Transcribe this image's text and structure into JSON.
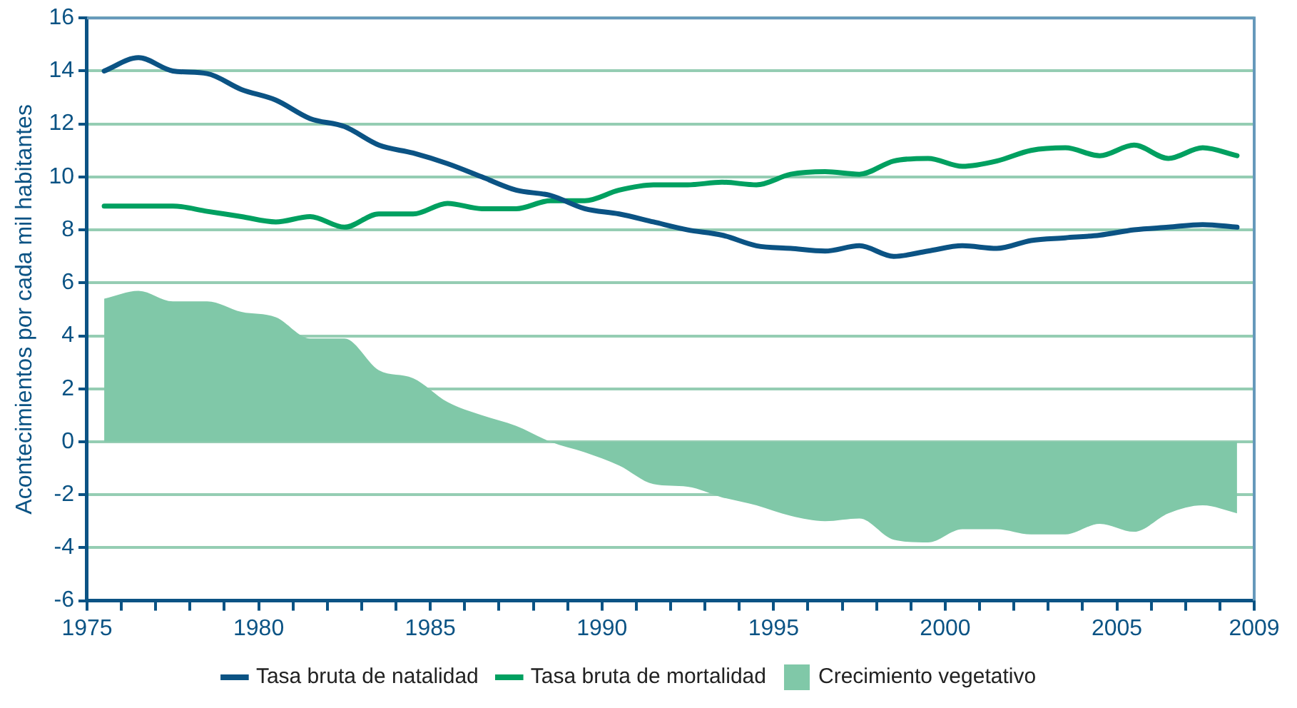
{
  "chart_data": {
    "type": "line",
    "ylabel": "Acontecimientos por cada mil habitantes",
    "x": [
      1975.5,
      1976.5,
      1977.5,
      1978.5,
      1979.5,
      1980.5,
      1981.5,
      1982.5,
      1983.5,
      1984.5,
      1985.5,
      1986.5,
      1987.5,
      1988.5,
      1989.5,
      1990.5,
      1991.5,
      1992.5,
      1993.5,
      1994.5,
      1995.5,
      1996.5,
      1997.5,
      1998.5,
      1999.5,
      2000.5,
      2001.5,
      2002.5,
      2003.5,
      2004.5,
      2005.5,
      2006.5,
      2007.5,
      2008.5
    ],
    "series": [
      {
        "name": "Tasa bruta de natalidad",
        "color": "#0b5384",
        "values": [
          14.0,
          14.5,
          14.0,
          13.9,
          13.3,
          12.9,
          12.2,
          11.9,
          11.2,
          10.9,
          10.5,
          10.0,
          9.5,
          9.3,
          8.8,
          8.6,
          8.3,
          8.0,
          7.8,
          7.4,
          7.3,
          7.2,
          7.4,
          7.0,
          7.2,
          7.4,
          7.3,
          7.6,
          7.7,
          7.8,
          8.0,
          8.1,
          8.2,
          8.1
        ]
      },
      {
        "name": "Tasa bruta de mortalidad",
        "color": "#00a060",
        "values": [
          8.9,
          8.9,
          8.9,
          8.7,
          8.5,
          8.3,
          8.5,
          8.1,
          8.6,
          8.6,
          9.0,
          8.8,
          8.8,
          9.1,
          9.1,
          9.5,
          9.7,
          9.7,
          9.8,
          9.7,
          10.1,
          10.2,
          10.1,
          10.6,
          10.7,
          10.4,
          10.6,
          11.0,
          11.1,
          10.8,
          11.2,
          10.7,
          11.1,
          10.8
        ]
      },
      {
        "name": "Crecimiento vegetativo",
        "type": "area",
        "color": "#80c8a8",
        "values": [
          5.4,
          5.7,
          5.3,
          5.3,
          4.9,
          4.7,
          3.9,
          3.9,
          2.7,
          2.4,
          1.5,
          1.0,
          0.6,
          0.0,
          -0.4,
          -0.9,
          -1.6,
          -1.7,
          -2.1,
          -2.4,
          -2.8,
          -3.0,
          -2.9,
          -3.7,
          -3.8,
          -3.3,
          -3.3,
          -3.5,
          -3.5,
          -3.1,
          -3.4,
          -2.7,
          -2.4,
          -2.7
        ]
      }
    ],
    "xlim": [
      1975,
      2009
    ],
    "xticks": [
      1975,
      {
        "value": 1976,
        "label": null
      },
      {
        "value": 1977,
        "label": null
      },
      {
        "value": 1978,
        "label": null
      },
      {
        "value": 1979,
        "label": null
      },
      1980,
      {
        "value": 1981,
        "label": null
      },
      {
        "value": 1982,
        "label": null
      },
      {
        "value": 1983,
        "label": null
      },
      {
        "value": 1984,
        "label": null
      },
      1985,
      {
        "value": 1986,
        "label": null
      },
      {
        "value": 1987,
        "label": null
      },
      {
        "value": 1988,
        "label": null
      },
      {
        "value": 1989,
        "label": null
      },
      1990,
      {
        "value": 1991,
        "label": null
      },
      {
        "value": 1992,
        "label": null
      },
      {
        "value": 1993,
        "label": null
      },
      {
        "value": 1994,
        "label": null
      },
      1995,
      {
        "value": 1996,
        "label": null
      },
      {
        "value": 1997,
        "label": null
      },
      {
        "value": 1998,
        "label": null
      },
      {
        "value": 1999,
        "label": null
      },
      2000,
      {
        "value": 2001,
        "label": null
      },
      {
        "value": 2002,
        "label": null
      },
      {
        "value": 2003,
        "label": null
      },
      {
        "value": 2004,
        "label": null
      },
      2005,
      {
        "value": 2006,
        "label": null
      },
      {
        "value": 2007,
        "label": null
      },
      {
        "value": 2008,
        "label": null
      },
      2009
    ],
    "ylim": [
      -6,
      16
    ],
    "yticks": [
      -6,
      -4,
      -2,
      0,
      2,
      4,
      6,
      8,
      10,
      12,
      14,
      16
    ],
    "grid": "y",
    "legend": "bottom",
    "marker": "none",
    "line_style": "solid"
  }
}
